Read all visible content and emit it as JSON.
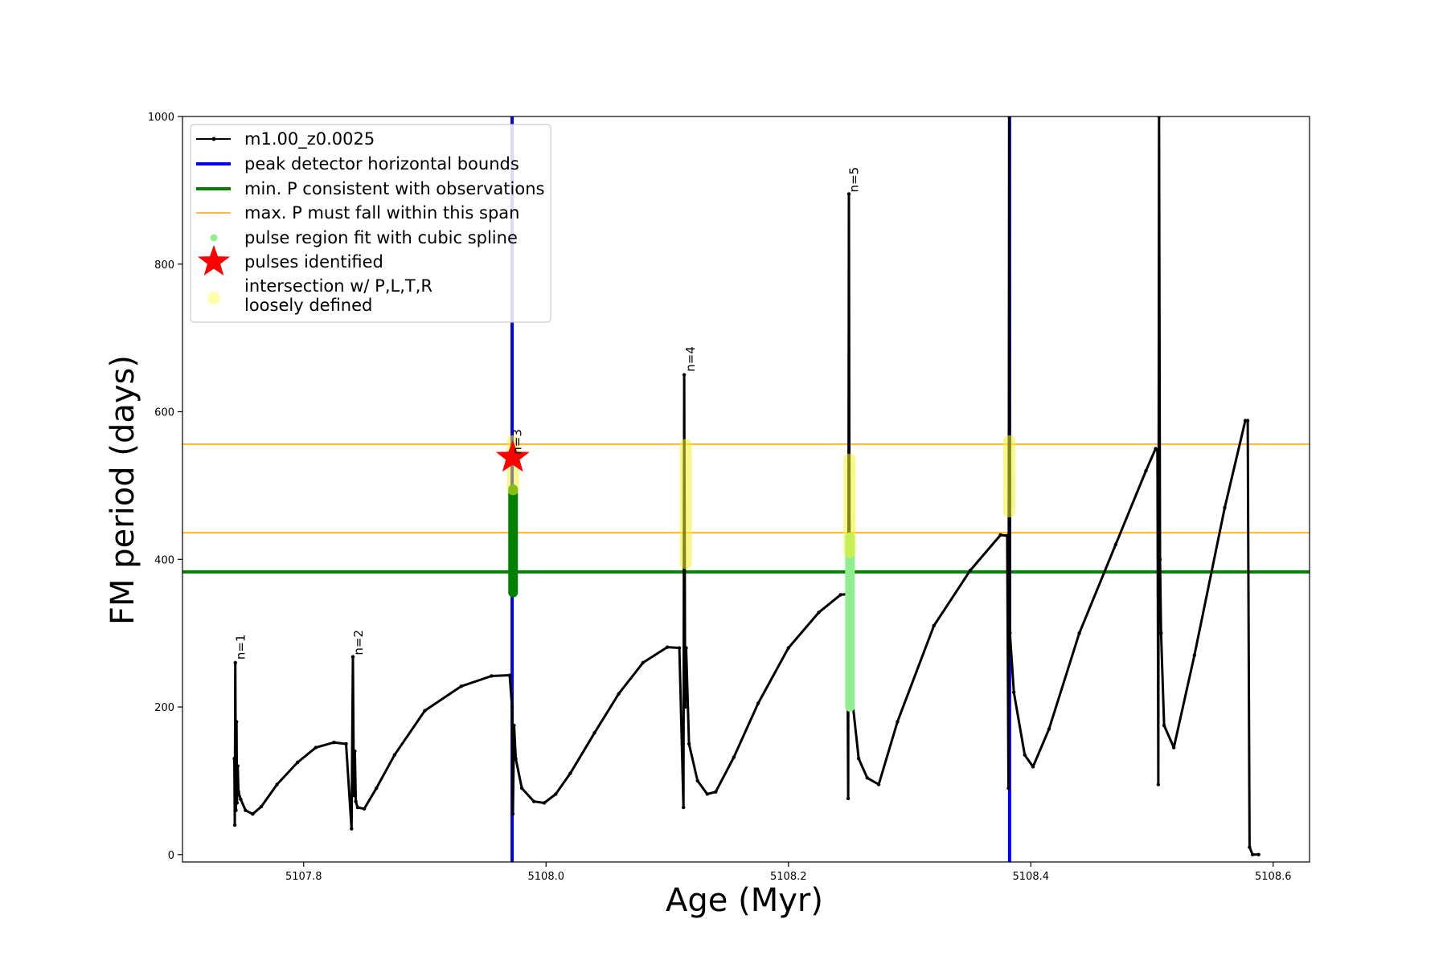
{
  "chart_data": {
    "type": "line",
    "title": "",
    "xlabel": "Age (Myr)",
    "ylabel": "FM period (days)",
    "xlim": [
      5107.7,
      5108.63
    ],
    "ylim": [
      -10,
      1000
    ],
    "xticks": [
      5107.8,
      5108.0,
      5108.2,
      5108.4,
      5108.6
    ],
    "xtick_labels": [
      "5107.8",
      "5108.0",
      "5108.2",
      "5108.4",
      "5108.6"
    ],
    "yticks": [
      0,
      200,
      400,
      600,
      800,
      1000
    ],
    "ytick_labels": [
      "0",
      "200",
      "400",
      "600",
      "800",
      "1000"
    ],
    "grid": false,
    "legend_position": "top-left",
    "series": [
      {
        "name": "m1.00_z0.0025",
        "color": "#000000",
        "style": "line-with-dots",
        "x": [
          5107.7428,
          5107.7432,
          5107.7436,
          5107.7441,
          5107.7446,
          5107.745,
          5107.7456,
          5107.7462,
          5107.748,
          5107.752,
          5107.758,
          5107.765,
          5107.778,
          5107.795,
          5107.81,
          5107.825,
          5107.835,
          5107.8395,
          5107.8406,
          5107.8414,
          5107.8422,
          5107.843,
          5107.8445,
          5107.85,
          5107.86,
          5107.875,
          5107.9,
          5107.93,
          5107.955,
          5107.97,
          5107.972,
          5107.9726,
          5107.9736,
          5107.975,
          5107.98,
          5107.99,
          5107.9985,
          5108.008,
          5108.02,
          5108.04,
          5108.06,
          5108.08,
          5108.1,
          5108.11,
          5108.1134,
          5108.114,
          5108.1148,
          5108.1156,
          5108.118,
          5108.125,
          5108.133,
          5108.14,
          5108.155,
          5108.175,
          5108.2,
          5108.225,
          5108.243,
          5108.2485,
          5108.2493,
          5108.2499,
          5108.2505,
          5108.252,
          5108.258,
          5108.265,
          5108.2745,
          5108.29,
          5108.32,
          5108.35,
          5108.375,
          5108.3805,
          5108.3816,
          5108.3822,
          5108.3828,
          5108.386,
          5108.395,
          5108.4018,
          5108.415,
          5108.44,
          5108.47,
          5108.495,
          5108.503,
          5108.5045,
          5108.5052,
          5108.5058,
          5108.5066,
          5108.5075,
          5108.51,
          5108.518,
          5108.535,
          5108.56,
          5108.577,
          5108.579,
          5108.5805,
          5108.583,
          5108.588
        ],
        "y": [
          130,
          40,
          260,
          60,
          180,
          70,
          120,
          85,
          75,
          60,
          55,
          65,
          95,
          125,
          145,
          152,
          150,
          35,
          268,
          80,
          140,
          72,
          64,
          62,
          90,
          135,
          195,
          228,
          242,
          243,
          200,
          55,
          175,
          130,
          90,
          72,
          70,
          82,
          110,
          165,
          218,
          260,
          281,
          280,
          64,
          650,
          200,
          280,
          150,
          100,
          82,
          85,
          132,
          205,
          280,
          328,
          352,
          353,
          76,
          895,
          300,
          220,
          130,
          104,
          95,
          180,
          310,
          385,
          433,
          432,
          90,
          1000,
          300,
          220,
          135,
          119,
          170,
          300,
          420,
          520,
          550,
          548,
          95,
          1000,
          400,
          300,
          175,
          145,
          270,
          470,
          588,
          588,
          10,
          0,
          0
        ]
      }
    ],
    "vertical_lines": [
      {
        "name": "peak detector horizontal bounds",
        "x": 5107.972,
        "color": "#0000ff"
      },
      {
        "name": "peak detector horizontal bounds",
        "x": 5108.3825,
        "color": "#0000ff"
      }
    ],
    "horizontal_lines": [
      {
        "name": "min. P consistent with observations",
        "y": 383,
        "color": "#007f00"
      },
      {
        "name": "max. P must fall within this span",
        "y": 436,
        "color": "#ffa500"
      },
      {
        "name": "max. P must fall within this span",
        "y": 556,
        "color": "#ffa500"
      }
    ],
    "pulse_region_spline": [
      {
        "x": 5107.9728,
        "y_range": [
          355,
          495
        ],
        "color": "#007f00"
      },
      {
        "x": 5108.2508,
        "y_range": [
          200,
          430
        ],
        "color": "#90ee90"
      }
    ],
    "loosely_defined_intersections": [
      {
        "x": 5107.9728,
        "y_range": [
          495,
          560
        ]
      },
      {
        "x": 5108.1153,
        "y_range": [
          395,
          555
        ]
      },
      {
        "x": 5108.2505,
        "y_range": [
          410,
          535
        ]
      },
      {
        "x": 5108.3822,
        "y_range": [
          465,
          560
        ]
      }
    ],
    "pulses_identified": [
      {
        "x": 5107.9725,
        "y": 538,
        "color": "#ff0000"
      }
    ],
    "annotations": [
      {
        "text": "n=1",
        "x": 5107.7455,
        "y": 262
      },
      {
        "text": "n=2",
        "x": 5107.8425,
        "y": 268
      },
      {
        "text": "n=3",
        "x": 5107.9735,
        "y": 540
      },
      {
        "text": "n=4",
        "x": 5108.1165,
        "y": 652
      },
      {
        "text": "n=5",
        "x": 5108.2515,
        "y": 895
      }
    ],
    "legend": [
      {
        "label": "m1.00_z0.0025",
        "marker": "line-dot",
        "color": "#000000"
      },
      {
        "label": "peak detector horizontal bounds",
        "marker": "line",
        "color": "#0000ff"
      },
      {
        "label": "min. P consistent with observations",
        "marker": "line",
        "color": "#007f00"
      },
      {
        "label": "max. P must fall within this span",
        "marker": "thin-line",
        "color": "#ffa500"
      },
      {
        "label": "pulse region fit with cubic spline",
        "marker": "dot",
        "color": "#90ee90"
      },
      {
        "label": "pulses identified",
        "marker": "star",
        "color": "#ff0000"
      },
      {
        "label": "intersection w/ P,L,T,R",
        "label2": "loosely defined",
        "marker": "big-dot",
        "color": "#ffffaa"
      }
    ]
  }
}
